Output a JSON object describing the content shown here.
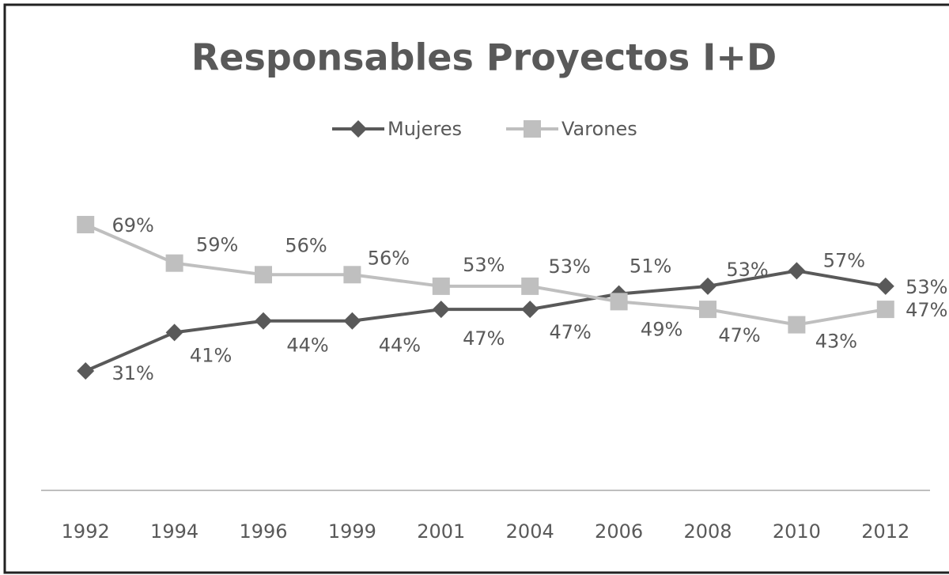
{
  "chart_data": {
    "type": "line",
    "title": "Responsables Proyectos I+D",
    "categories": [
      "1992",
      "1994",
      "1996",
      "1999",
      "2001",
      "2004",
      "2006",
      "2008",
      "2010",
      "2012"
    ],
    "series": [
      {
        "name": "Mujeres",
        "color": "#595959",
        "marker": "diamond",
        "values": [
          31,
          41,
          44,
          44,
          47,
          47,
          51,
          53,
          57,
          53
        ],
        "value_labels": [
          "31%",
          "41%",
          "44%",
          "44%",
          "47%",
          "47%",
          "51%",
          "53%",
          "57%",
          "53%"
        ]
      },
      {
        "name": "Varones",
        "color": "#bfbfbf",
        "marker": "square",
        "values": [
          69,
          59,
          56,
          56,
          53,
          53,
          49,
          47,
          43,
          47
        ],
        "value_labels": [
          "69%",
          "59%",
          "56%",
          "56%",
          "53%",
          "53%",
          "49%",
          "47%",
          "43%",
          "47%"
        ]
      }
    ],
    "ylim": [
      0,
      100
    ],
    "grid": false,
    "legend": "top"
  }
}
